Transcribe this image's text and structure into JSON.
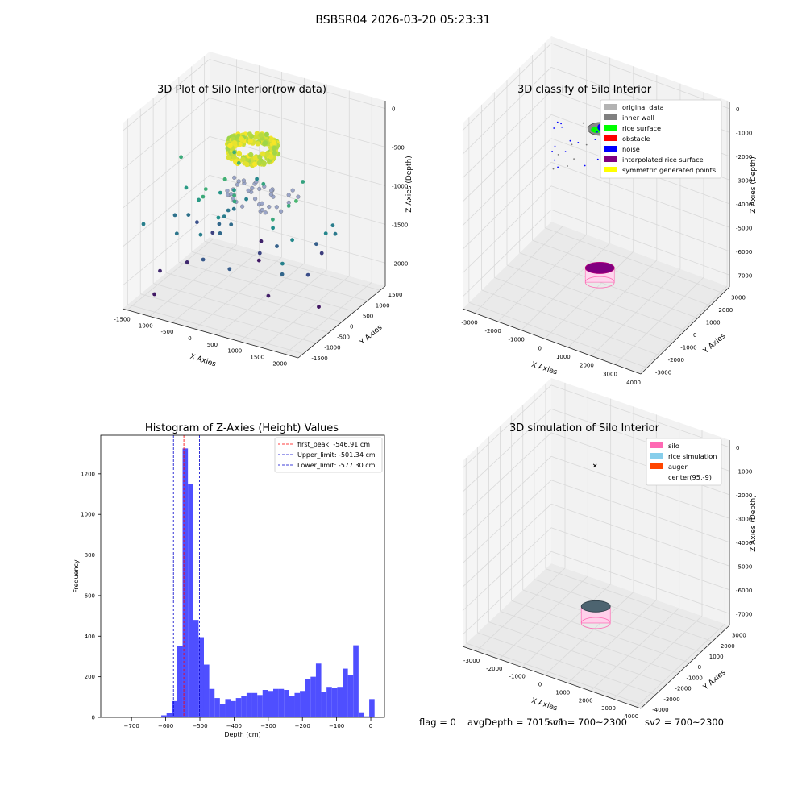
{
  "figure": {
    "suptitle": "BSBSR04 2026-03-20 05:23:31",
    "footer": {
      "flag": "flag = 0",
      "avg_depth": "avgDepth = 7015 cm",
      "sv1": "sv1 = 700~2300",
      "sv2": "sv2 = 700~2300"
    }
  },
  "colors": {
    "histogram_bar": "#4f4fff",
    "first_peak_line": "#ff0000",
    "limit_lines": "#0000cc",
    "pane": "#f2f2f2",
    "grid": "#d9d9d9"
  },
  "chart_data": [
    {
      "type": "scatter",
      "title": "3D Plot of Silo Interior(row data)",
      "xlabel": "X Axies",
      "ylabel": "Y Axies",
      "zlabel": "Z Axies (Depth)",
      "xlim": [
        -1600,
        2300
      ],
      "ylim": [
        -1700,
        1700
      ],
      "zlim": [
        -2300,
        100
      ],
      "xticks": [
        -1500,
        -1000,
        -500,
        0,
        500,
        1000,
        1500,
        2000
      ],
      "yticks": [
        -1500,
        -1000,
        -500,
        0,
        500,
        1000,
        1500
      ],
      "zticks": [
        0,
        -500,
        -1000,
        -1500,
        -2000
      ],
      "colormap": "viridis (color by depth)",
      "grid": true,
      "note": "Dense ring of points near depth -550 with scattered outliers down to about -2100"
    },
    {
      "type": "scatter",
      "title": "3D classify of Silo Interior",
      "xlabel": "X Axies",
      "ylabel": "Y Axies",
      "zlabel": "Z Axies (Depth)",
      "xlim": [
        -3500,
        4100
      ],
      "ylim": [
        -3500,
        3500
      ],
      "zlim": [
        -7500,
        300
      ],
      "xticks": [
        -3000,
        -2000,
        -1000,
        0,
        1000,
        2000,
        3000,
        4000
      ],
      "yticks": [
        -3000,
        -2000,
        -1000,
        0,
        1000,
        2000,
        3000
      ],
      "zticks": [
        0,
        -1000,
        -2000,
        -3000,
        -4000,
        -5000,
        -6000,
        -7000
      ],
      "legend_position": "top-right",
      "legend": [
        {
          "label": "original data",
          "color": "#b3b3b3"
        },
        {
          "label": "inner wall",
          "color": "#808080"
        },
        {
          "label": "rice surface",
          "color": "#00ff00"
        },
        {
          "label": "obstacle",
          "color": "#ff0000"
        },
        {
          "label": "noise",
          "color": "#0000ff"
        },
        {
          "label": "interpolated rice surface",
          "color": "#800080"
        },
        {
          "label": "symmetric generated points",
          "color": "#ffff00"
        }
      ],
      "grid": true
    },
    {
      "type": "bar",
      "title": "Histogram of Z-Axies (Height) Values",
      "xlabel": "Depth (cm)",
      "ylabel": "Frequency",
      "xlim": [
        -790,
        40
      ],
      "ylim": [
        0,
        1390
      ],
      "xticks": [
        -700,
        -600,
        -500,
        -400,
        -300,
        -200,
        -100,
        0
      ],
      "yticks": [
        0,
        200,
        400,
        600,
        800,
        1000,
        1200
      ],
      "bin_width": 15.6,
      "bins": [
        {
          "x": -730.0,
          "value": 3
        },
        {
          "x": -714.4,
          "value": 3
        },
        {
          "x": -636.4,
          "value": 3
        },
        {
          "x": -605.2,
          "value": 10
        },
        {
          "x": -589.6,
          "value": 22
        },
        {
          "x": -574.0,
          "value": 80
        },
        {
          "x": -558.4,
          "value": 350
        },
        {
          "x": -542.8,
          "value": 1325
        },
        {
          "x": -527.2,
          "value": 1150
        },
        {
          "x": -511.6,
          "value": 480
        },
        {
          "x": -496.0,
          "value": 395
        },
        {
          "x": -480.4,
          "value": 260
        },
        {
          "x": -464.8,
          "value": 140
        },
        {
          "x": -449.2,
          "value": 95
        },
        {
          "x": -433.6,
          "value": 65
        },
        {
          "x": -418.0,
          "value": 90
        },
        {
          "x": -402.4,
          "value": 80
        },
        {
          "x": -386.8,
          "value": 95
        },
        {
          "x": -371.2,
          "value": 105
        },
        {
          "x": -355.6,
          "value": 120
        },
        {
          "x": -340.0,
          "value": 120
        },
        {
          "x": -324.4,
          "value": 110
        },
        {
          "x": -308.8,
          "value": 135
        },
        {
          "x": -293.2,
          "value": 130
        },
        {
          "x": -277.6,
          "value": 140
        },
        {
          "x": -262.0,
          "value": 140
        },
        {
          "x": -246.4,
          "value": 135
        },
        {
          "x": -230.8,
          "value": 105
        },
        {
          "x": -215.2,
          "value": 120
        },
        {
          "x": -199.6,
          "value": 130
        },
        {
          "x": -184.0,
          "value": 190
        },
        {
          "x": -168.4,
          "value": 200
        },
        {
          "x": -152.8,
          "value": 265
        },
        {
          "x": -137.2,
          "value": 125
        },
        {
          "x": -121.6,
          "value": 150
        },
        {
          "x": -106.0,
          "value": 145
        },
        {
          "x": -90.4,
          "value": 150
        },
        {
          "x": -74.8,
          "value": 240
        },
        {
          "x": -59.2,
          "value": 210
        },
        {
          "x": -43.6,
          "value": 355
        },
        {
          "x": -28.0,
          "value": 25
        },
        {
          "x": -12.4,
          "value": 5
        },
        {
          "x": 3.2,
          "value": 90
        }
      ],
      "vlines": [
        {
          "label": "first_peak: -546.91 cm",
          "x": -546.91,
          "color": "#ff0000"
        },
        {
          "label": "Upper_limit: -501.34 cm",
          "x": -501.34,
          "color": "#0000cc"
        },
        {
          "label": "Lower_limit: -577.30 cm",
          "x": -577.3,
          "color": "#0000cc"
        }
      ],
      "legend_position": "top-right",
      "grid": false
    },
    {
      "type": "scatter",
      "title": "3D simulation of Silo Interior",
      "xlabel": "X Axies",
      "ylabel": "Y Axies",
      "zlabel": "Z Axies (Depth)",
      "xlim": [
        -3600,
        4200
      ],
      "ylim": [
        -4300,
        3500
      ],
      "zlim": [
        -7500,
        300
      ],
      "xticks": [
        -3000,
        -2000,
        -1000,
        0,
        1000,
        2000,
        3000,
        4000
      ],
      "yticks": [
        -4000,
        -3000,
        -2000,
        -1000,
        0,
        1000,
        2000,
        3000
      ],
      "zticks": [
        0,
        -1000,
        -2000,
        -3000,
        -4000,
        -5000,
        -6000,
        -7000
      ],
      "legend_position": "top-right",
      "legend": [
        {
          "label": "silo",
          "color": "#ff69b4"
        },
        {
          "label": "rice simulation",
          "color": "#87ceeb"
        },
        {
          "label": "auger",
          "color": "#ff4500"
        },
        {
          "label": "center(95,-9)",
          "color": "none"
        }
      ],
      "grid": true
    }
  ]
}
